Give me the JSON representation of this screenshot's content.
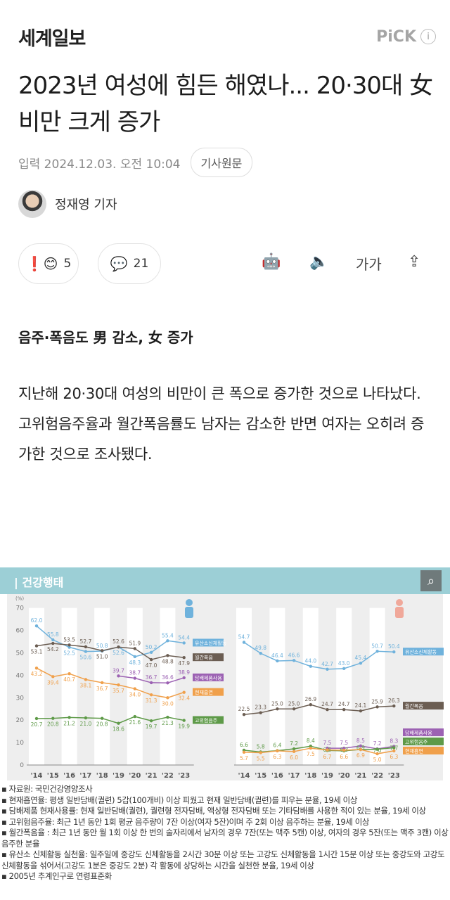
{
  "header": {
    "brand": "세계일보",
    "pick": "PiCK",
    "info_icon": "info-icon"
  },
  "article": {
    "title": "2023년 여성에 힘든 해였나... 20·30대 女 비만 크게 증가",
    "meta": {
      "date": "입력 2024.12.03. 오전 10:04",
      "original_button": "기사원문"
    },
    "author": "정재영 기자",
    "reactions": {
      "count": "5",
      "comments": "21"
    },
    "tools": {
      "font_size": "가가"
    },
    "subhead": "음주·폭음도 男 감소, 女 증가",
    "body": "지난해 20·30대 여성의 비만이 큰 폭으로 증가한 것으로 나타났다. 고위험음주율과 월간폭음률도 남자는 감소한 반면 여자는 오히려 증가한 것으로 조사됐다."
  },
  "infographic": {
    "title": "건강행태",
    "unit": "(%)",
    "notes": [
      "자료원: 국민건강영양조사",
      "현재흡연율: 평생 일반담배(궐련) 5갑(100개비) 이상 피웠고 현재 일반담배(궐련)를 피우는 분율, 19세 이상",
      "담배제품 현재사용률: 현재 일반담배(궐련), 궐련형 전자담배, 액상형 전자담배 또는 기타담배를 사용한 적이 있는 분율, 19세 이상",
      "고위험음주율: 최근 1년 동안 1회 평균 음주량이 7잔 이상(여자 5잔)이며 주 2회 이상 음주하는 분율, 19세 이상",
      "월간폭음율 : 최근 1년 동안 월 1회 이상 한 번의 술자리에서 남자의 경우 7잔(또는 맥주 5캔) 이상, 여자의 경우 5잔(또는 맥주 3캔) 이상 음주한 분율",
      "유산소 신체활동 실천율: 일주일에 중강도 신체활동을 2시간 30분 이상 또는 고강도 신체활동을 1시간 15분 이상 또는 중강도와 고강도 신체활동을 섞어서(고강도 1분은 중강도 2분) 각 활동에 상당하는 시간을 실천한 분율, 19세 이상",
      "2005년 추계인구로 연령표준화"
    ]
  },
  "chart_data": [
    {
      "type": "line",
      "panel": "male",
      "icon": "male-figure-icon",
      "ylabel": "(%)",
      "ylim": [
        0,
        70
      ],
      "yticks": [
        0,
        10,
        20,
        30,
        40,
        50,
        60,
        70
      ],
      "categories": [
        "'14",
        "'15",
        "'16",
        "'17",
        "'18",
        "'19",
        "'20",
        "'21",
        "'22",
        "'23"
      ],
      "grid": false,
      "series": [
        {
          "name": "유산소신체활동",
          "color": "#6fb2dc",
          "values": [
            62.0,
            55.8,
            52.5,
            50.6,
            50.8,
            52.6,
            48.3,
            50.2,
            55.4,
            54.4
          ]
        },
        {
          "name": "월간폭음",
          "color": "#6b5d52",
          "values": [
            53.1,
            54.2,
            53.5,
            52.7,
            51.0,
            52.6,
            51.9,
            47.0,
            48.8,
            47.9
          ]
        },
        {
          "name": "담배제품사용",
          "color": "#9c62b3",
          "values": [
            null,
            null,
            null,
            null,
            null,
            39.7,
            38.7,
            36.7,
            36.6,
            38.9
          ]
        },
        {
          "name": "현재흡연",
          "color": "#f0a04b",
          "values": [
            43.2,
            39.4,
            40.7,
            38.1,
            36.7,
            35.7,
            34.0,
            31.3,
            30.0,
            32.4
          ]
        },
        {
          "name": "고위험음주",
          "color": "#5e9a48",
          "values": [
            20.7,
            20.8,
            21.2,
            21.0,
            20.8,
            18.6,
            21.6,
            19.7,
            21.3,
            19.9
          ]
        }
      ]
    },
    {
      "type": "line",
      "panel": "female",
      "icon": "female-figure-icon",
      "ylim": [
        0,
        70
      ],
      "categories": [
        "'14",
        "'15",
        "'16",
        "'17",
        "'18",
        "'19",
        "'20",
        "'21",
        "'22",
        "'23"
      ],
      "grid": false,
      "series": [
        {
          "name": "유산소신체활동",
          "color": "#6fb2dc",
          "values": [
            54.7,
            49.8,
            46.4,
            46.6,
            44.0,
            42.7,
            43.0,
            45.4,
            50.7,
            50.4
          ]
        },
        {
          "name": "월간폭음",
          "color": "#6b5d52",
          "values": [
            22.5,
            23.3,
            25.0,
            25.0,
            26.9,
            24.7,
            24.7,
            24.1,
            25.9,
            26.3
          ]
        },
        {
          "name": "담배제품사용",
          "color": "#9c62b3",
          "values": [
            null,
            null,
            null,
            null,
            null,
            7.5,
            7.5,
            8.5,
            7.2,
            8.3
          ]
        },
        {
          "name": "고위험음주",
          "color": "#5e9a48",
          "values": [
            6.6,
            5.8,
            6.4,
            7.2,
            8.4,
            6.5,
            6.3,
            6.9,
            7.0,
            7.7
          ]
        },
        {
          "name": "현재흡연",
          "color": "#f0a04b",
          "values": [
            5.7,
            5.5,
            6.3,
            6.0,
            7.5,
            6.7,
            6.6,
            6.9,
            5.0,
            6.3
          ]
        }
      ]
    }
  ]
}
